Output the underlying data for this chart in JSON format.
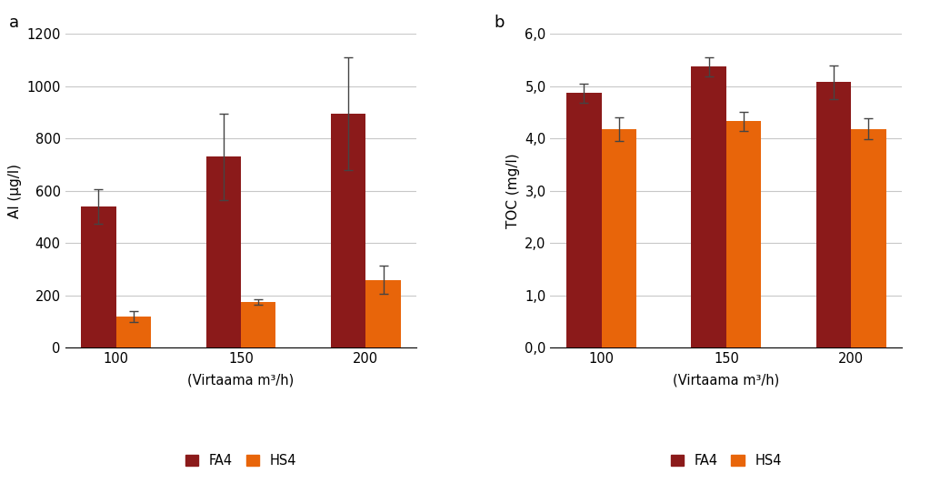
{
  "categories": [
    "100",
    "150",
    "200"
  ],
  "chart_a": {
    "title": "a",
    "ylabel": "Al (μg/l)",
    "xlabel": "(Virtaama m³/h)",
    "ylim": [
      0,
      1200
    ],
    "yticks": [
      0,
      200,
      400,
      600,
      800,
      1000,
      1200
    ],
    "ytick_labels": [
      "0",
      "200",
      "400",
      "600",
      "800",
      "1000",
      "1200"
    ],
    "fa4_values": [
      540,
      730,
      895
    ],
    "fa4_errors": [
      65,
      165,
      215
    ],
    "hs4_values": [
      120,
      175,
      260
    ],
    "hs4_errors": [
      20,
      12,
      55
    ]
  },
  "chart_b": {
    "title": "b",
    "ylabel": "TOC (mg/l)",
    "xlabel": "(Virtaama m³/h)",
    "ylim": [
      0,
      6.0
    ],
    "yticks": [
      0.0,
      1.0,
      2.0,
      3.0,
      4.0,
      5.0,
      6.0
    ],
    "ytick_labels": [
      "0,0",
      "1,0",
      "2,0",
      "3,0",
      "4,0",
      "5,0",
      "6,0"
    ],
    "fa4_values": [
      4.87,
      5.37,
      5.08
    ],
    "fa4_errors": [
      0.18,
      0.18,
      0.32
    ],
    "hs4_values": [
      4.18,
      4.33,
      4.18
    ],
    "hs4_errors": [
      0.22,
      0.18,
      0.2
    ]
  },
  "fa4_color": "#8B1A1A",
  "hs4_color": "#E8650A",
  "bar_width": 0.28,
  "legend_labels": [
    "FA4",
    "HS4"
  ],
  "background_color": "#ffffff",
  "grid_color": "#c8c8c8",
  "errorbar_color": "#444444"
}
